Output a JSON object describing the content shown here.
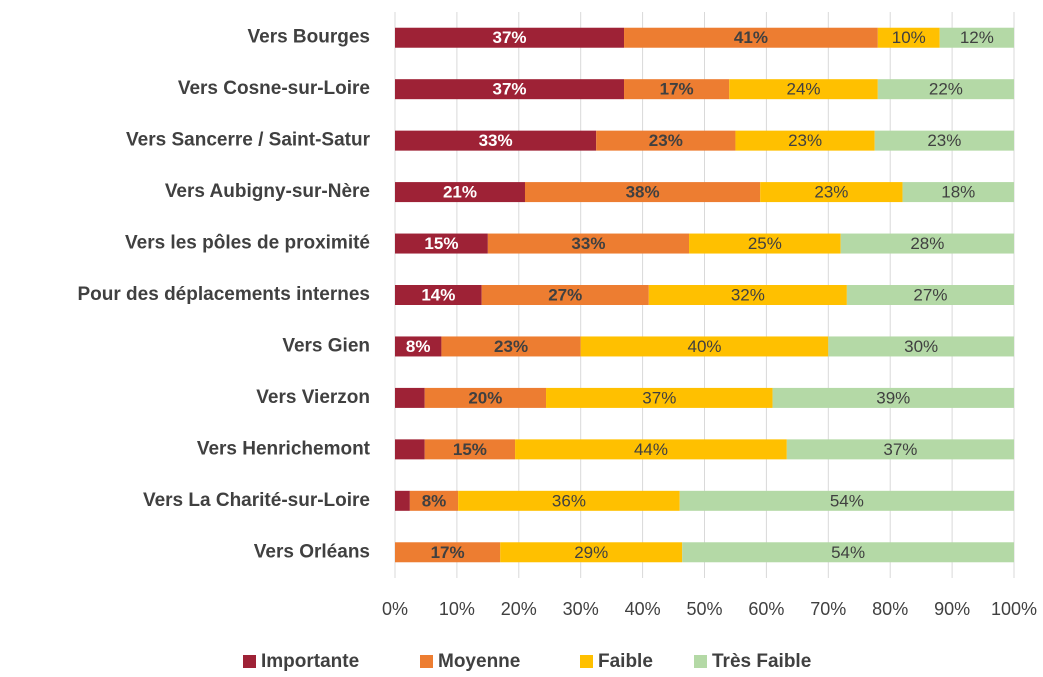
{
  "chart_data": {
    "type": "stacked_bar_horizontal",
    "categories": [
      "Vers Bourges",
      "Vers Cosne-sur-Loire",
      "Vers Sancerre / Saint-Satur",
      "Vers Aubigny-sur-Nère",
      "Vers les pôles de proximité",
      "Pour des déplacements internes",
      "Vers Gien",
      "Vers Vierzon",
      "Vers Henrichemont",
      "Vers La Charité-sur-Loire",
      "Vers Orléans"
    ],
    "series": [
      {
        "name": "Importante",
        "color": "#9e2236",
        "values": [
          37,
          37,
          32.5,
          21,
          15,
          14,
          7.5,
          4.8,
          4.8,
          2.4,
          0
        ],
        "value_labels": [
          "37%",
          "37%",
          "33%",
          "21%",
          "15%",
          "14%",
          "8%",
          null,
          null,
          null,
          null
        ]
      },
      {
        "name": "Moyenne",
        "color": "#ed7d31",
        "values": [
          41,
          17,
          22.5,
          38,
          32.5,
          27,
          22.5,
          19.6,
          14.6,
          7.8,
          17
        ],
        "value_labels": [
          "41%",
          "17%",
          "23%",
          "38%",
          "33%",
          "27%",
          "23%",
          "20%",
          "15%",
          "8%",
          "17%"
        ]
      },
      {
        "name": "Faible",
        "color": "#ffc000",
        "values": [
          10,
          24,
          22.5,
          23,
          24.5,
          32,
          40,
          36.6,
          43.9,
          35.8,
          29.4
        ],
        "value_labels": [
          "10%",
          "24%",
          "23%",
          "23%",
          "25%",
          "32%",
          "40%",
          "37%",
          "44%",
          "36%",
          "29%"
        ]
      },
      {
        "name": "Très Faible",
        "color": "#b4d9a6",
        "values": [
          12,
          22,
          22.5,
          18,
          28,
          27,
          30,
          39,
          36.7,
          54,
          53.6
        ],
        "value_labels": [
          "12%",
          "22%",
          "23%",
          "18%",
          "28%",
          "27%",
          "30%",
          "39%",
          "37%",
          "54%",
          "54%"
        ]
      }
    ],
    "xlim": [
      0,
      100
    ],
    "xticks": [
      {
        "value": 0,
        "label": "0%"
      },
      {
        "value": 10,
        "label": "10%"
      },
      {
        "value": 20,
        "label": "20%"
      },
      {
        "value": 30,
        "label": "30%"
      },
      {
        "value": 40,
        "label": "40%"
      },
      {
        "value": 50,
        "label": "50%"
      },
      {
        "value": 60,
        "label": "60%"
      },
      {
        "value": 70,
        "label": "70%"
      },
      {
        "value": 80,
        "label": "80%"
      },
      {
        "value": 90,
        "label": "90%"
      },
      {
        "value": 100,
        "label": "100%"
      }
    ],
    "grid": true,
    "legend": "bottom"
  }
}
